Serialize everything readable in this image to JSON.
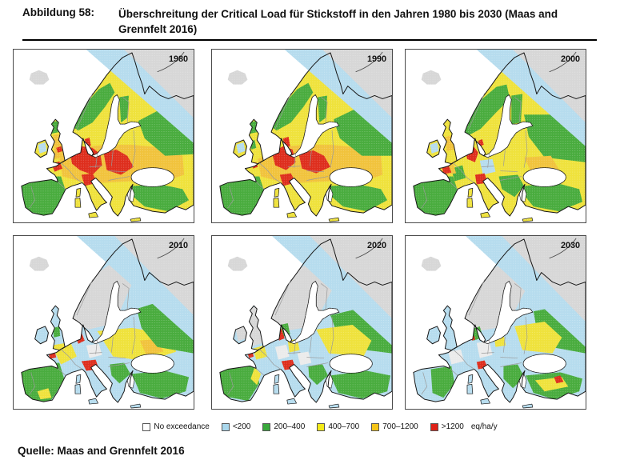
{
  "header": {
    "label": "Abbildung 58:",
    "caption_line1": "Überschreitung der Critical Load für Stickstoff in den Jahren 1980 bis 2030 (Maas and",
    "caption_line2": "Grennfelt 2016)"
  },
  "source": "Quelle: Maas and Grennfelt 2016",
  "legend": {
    "unit": "eq/ha/y",
    "items": [
      {
        "label": "No exceedance",
        "color": "#ffffff"
      },
      {
        "label": "<200",
        "color": "#a9d7ec"
      },
      {
        "label": "200–400",
        "color": "#39a83b"
      },
      {
        "label": "400–700",
        "color": "#f3ea19"
      },
      {
        "label": "700–1200",
        "color": "#f5c518"
      },
      {
        "label": ">1200",
        "color": "#df2218"
      }
    ]
  },
  "palette": {
    "gray": "#d7d7d7",
    "lightgray": "#ebebeb",
    "blue": "#b6dcee",
    "green": "#49ac3e",
    "yellow": "#efe23c",
    "orange": "#f1c33c",
    "red": "#de2e1d",
    "white": "#ffffff"
  },
  "maps": [
    {
      "year": "1980",
      "base": "yellow",
      "patches": [
        {
          "c": "green",
          "p": "4,160 60,160 66,178 58,196 46,212 12,210 6,184"
        },
        {
          "c": "orange",
          "p": "58,138 76,130 96,122 118,120 150,120 190,124 214,134 216,158 186,168 150,166 112,168 84,166 62,160"
        },
        {
          "c": "orange",
          "p": "50,108 62,106 64,136 52,138"
        },
        {
          "c": "green",
          "p": "72,96 90,70 108,50 122,42 128,54 116,72 100,92 82,102"
        },
        {
          "c": "green",
          "p": "134,60 146,58 144,86 136,92"
        },
        {
          "c": "green",
          "p": "158,90 200,68 228,88 228,132 192,134 166,112"
        },
        {
          "c": "green",
          "p": "150,172 186,170 214,176 222,190 196,204 166,198 152,186"
        },
        {
          "c": "blue",
          "p": "31,120 40,117 42,128 33,131"
        },
        {
          "c": "green",
          "p": "46,92 56,90 58,104 48,106"
        },
        {
          "c": "red",
          "p": "72,134 86,122 100,124 110,132 112,146 100,158 84,152 74,144"
        },
        {
          "c": "red",
          "p": "114,130 130,126 144,134 152,148 136,158 118,152"
        },
        {
          "c": "red",
          "p": "86,158 100,156 106,168 90,172"
        },
        {
          "c": "red",
          "p": "48,144 58,141 62,150 52,154"
        },
        {
          "c": "red",
          "p": "90,113 96,111 98,121 92,123"
        },
        {
          "c": "red",
          "p": "54,124 60,122 62,128 56,130"
        }
      ],
      "overlays": [
        {
          "c": "blue",
          "p": "92,0 228,0 228,118"
        },
        {
          "c": "gray",
          "p": "140,0 228,0 228,86"
        }
      ]
    },
    {
      "year": "1990",
      "base": "yellow",
      "patches": [
        {
          "c": "green",
          "p": "4,160 60,160 66,178 58,196 46,212 12,210 6,184"
        },
        {
          "c": "orange",
          "p": "58,138 76,130 96,122 118,120 150,120 190,124 214,134 216,158 186,168 150,166 112,168 84,166 62,160"
        },
        {
          "c": "green",
          "p": "72,96 90,70 108,50 122,42 128,54 116,72 100,92 82,102"
        },
        {
          "c": "green",
          "p": "134,60 146,58 144,86 136,92"
        },
        {
          "c": "green",
          "p": "154,88 200,66 228,86 228,134 190,134 162,112"
        },
        {
          "c": "green",
          "p": "150,172 186,170 214,176 222,190 196,204 166,198 152,186"
        },
        {
          "c": "blue",
          "p": "31,120 40,117 42,128 33,131"
        },
        {
          "c": "green",
          "p": "46,92 56,90 58,104 48,106"
        },
        {
          "c": "green",
          "p": "48,116 54,114 56,124 50,126"
        },
        {
          "c": "red",
          "p": "76,130 90,122 102,126 106,142 94,152 80,146"
        },
        {
          "c": "red",
          "p": "110,132 128,127 142,134 150,148 132,156 114,150"
        },
        {
          "c": "red",
          "p": "86,158 100,156 106,168 90,172"
        },
        {
          "c": "red",
          "p": "90,112 97,110 99,122 92,124"
        },
        {
          "c": "red",
          "p": "50,144 56,142 58,148 52,150"
        }
      ],
      "overlays": [
        {
          "c": "blue",
          "p": "92,0 228,0 228,118"
        },
        {
          "c": "gray",
          "p": "140,0 228,0 228,86"
        }
      ]
    },
    {
      "year": "2000",
      "base": "yellow",
      "patches": [
        {
          "c": "green",
          "p": "4,160 60,160 66,178 58,196 46,212 12,210 6,184"
        },
        {
          "c": "green",
          "p": "70,100 95,64 115,47 128,44 132,62 114,80 95,100 80,108"
        },
        {
          "c": "green",
          "p": "134,58 148,56 146,92 134,94"
        },
        {
          "c": "green",
          "p": "150,82 228,82 228,142 176,136 156,110"
        },
        {
          "c": "green",
          "p": "118,160 142,158 150,172 138,186 122,176"
        },
        {
          "c": "green",
          "p": "150,172 190,168 220,176 224,192 194,204 162,198 152,186"
        },
        {
          "c": "green",
          "p": "58,150 72,146 76,162 62,166"
        },
        {
          "c": "blue",
          "p": "94,140 110,138 114,154 98,158"
        },
        {
          "c": "blue",
          "p": "31,120 40,117 42,128 33,131"
        },
        {
          "c": "orange",
          "p": "50,110 60,108 62,126 52,128"
        },
        {
          "c": "orange",
          "p": "150,136 184,134 196,154 162,160"
        },
        {
          "c": "orange",
          "p": "44,146 60,142 64,156 48,158"
        },
        {
          "c": "red",
          "p": "76,128 86,122 92,130 88,142 78,138"
        },
        {
          "c": "red",
          "p": "46,147 54,145 58,155 48,157"
        },
        {
          "c": "red",
          "p": "88,158 100,156 104,168 90,170"
        },
        {
          "c": "red",
          "p": "92,115 97,113 99,120 94,122"
        }
      ],
      "overlays": [
        {
          "c": "blue",
          "p": "90,0 228,0 228,122"
        },
        {
          "c": "gray",
          "p": "136,0 228,0 228,92"
        }
      ]
    },
    {
      "year": "2010",
      "base": "blue",
      "patches": [
        {
          "c": "gray",
          "p": "70,105 86,75 104,48 122,36 146,8 160,30 150,60 136,92 120,112 95,118"
        },
        {
          "c": "green",
          "p": "6,162 58,160 64,180 54,198 44,212 12,208 8,184"
        },
        {
          "c": "yellow",
          "p": "30,196 44,192 48,204 34,206"
        },
        {
          "c": "yellow",
          "p": "48,138 72,134 80,152 60,162"
        },
        {
          "c": "yellow",
          "p": "106,120 150,116 196,124 206,146 168,158 126,152"
        },
        {
          "c": "orange",
          "p": "160,132 182,130 190,146 168,150"
        },
        {
          "c": "green",
          "p": "156,92 200,78 228,108 228,148 182,140 162,116"
        },
        {
          "c": "green",
          "p": "122,162 140,160 148,174 134,186 124,176"
        },
        {
          "c": "green",
          "p": "150,174 192,170 222,178 218,196 188,205 160,198"
        },
        {
          "c": "green",
          "p": "50,116 58,114 59,126 51,128"
        },
        {
          "c": "lightgray",
          "p": "92,138 108,136 112,150 96,154"
        },
        {
          "c": "red",
          "p": "78,126 86,122 90,132 82,136"
        },
        {
          "c": "red",
          "p": "86,158 104,156 108,168 92,170"
        },
        {
          "c": "red",
          "p": "44,147 52,145 54,153 46,155"
        }
      ],
      "overlays": [
        {
          "c": "blue",
          "p": "80,0 228,0 228,132"
        },
        {
          "c": "gray",
          "p": "128,0 228,0 228,100"
        }
      ]
    },
    {
      "year": "2020",
      "base": "blue",
      "patches": [
        {
          "c": "gray",
          "p": "68,108 85,75 104,46 125,32 150,6 165,35 152,68 138,95 120,115 92,120"
        },
        {
          "c": "gray",
          "p": "46,92 58,88 64,135 48,140"
        },
        {
          "c": "gray",
          "p": "30,116 42,112 45,128 33,133"
        },
        {
          "c": "green",
          "p": "8,164 55,162 60,186 46,208 14,202"
        },
        {
          "c": "yellow",
          "p": "54,166 62,174 57,188 49,180"
        },
        {
          "c": "green",
          "p": "150,100 200,88 228,118 228,148 180,142 158,122"
        },
        {
          "c": "yellow",
          "p": "132,118 178,112 202,132 192,152 148,148"
        },
        {
          "c": "green",
          "p": "150,176 196,170 226,176 222,196 190,205 160,198"
        },
        {
          "c": "green",
          "p": "122,164 140,162 147,176 133,188 123,178"
        },
        {
          "c": "green",
          "p": "87,112 96,110 99,124 90,127"
        },
        {
          "c": "yellow",
          "p": "52,142 66,138 70,152 56,156"
        },
        {
          "c": "yellow",
          "p": "96,132 108,130 111,144 98,147"
        },
        {
          "c": "lightgray",
          "p": "80,140 94,137 98,152 84,156"
        },
        {
          "c": "lightgray",
          "p": "108,148 122,146 126,160 112,163"
        },
        {
          "c": "red",
          "p": "82,120 88,117 92,129 85,132"
        },
        {
          "c": "red",
          "p": "88,158 102,156 106,167 92,169"
        },
        {
          "c": "red",
          "p": "45,148 51,146 53,152 47,154"
        }
      ],
      "overlays": [
        {
          "c": "blue",
          "p": "76,0 228,0 228,138"
        },
        {
          "c": "gray",
          "p": "124,0 228,0 228,104"
        }
      ]
    },
    {
      "year": "2030",
      "base": "blue",
      "patches": [
        {
          "c": "gray",
          "p": "68,108 85,75 104,46 125,32 150,6 165,35 152,68 138,95 120,115 92,120"
        },
        {
          "c": "lightgray",
          "p": "54,146 70,143 74,158 58,162"
        },
        {
          "c": "lightgray",
          "p": "90,135 106,132 110,150 94,154"
        },
        {
          "c": "green",
          "p": "32,168 58,164 62,186 48,204 34,198"
        },
        {
          "c": "green",
          "p": "162,95 210,86 228,110 228,148 184,140 166,118"
        },
        {
          "c": "green",
          "p": "124,164 142,162 150,178 136,192 124,180"
        },
        {
          "c": "green",
          "p": "152,176 196,172 224,180 220,196 188,206 162,198"
        },
        {
          "c": "green",
          "p": "82,118 94,114 98,128 86,132"
        },
        {
          "c": "yellow",
          "p": "138,114 176,108 198,128 186,148 148,144"
        },
        {
          "c": "yellow",
          "p": "164,182 198,178 206,190 176,196"
        },
        {
          "c": "yellow",
          "p": "112,126 124,124 127,138 114,140"
        },
        {
          "c": "red",
          "p": "90,159 100,157 104,166 92,168"
        },
        {
          "c": "red",
          "p": "188,178 196,176 200,184 191,186"
        },
        {
          "c": "red",
          "p": "83,127 87,126 88,131 84,132"
        }
      ],
      "overlays": [
        {
          "c": "blue",
          "p": "76,0 228,0 228,140"
        },
        {
          "c": "gray",
          "p": "122,0 228,0 228,108"
        }
      ]
    }
  ]
}
